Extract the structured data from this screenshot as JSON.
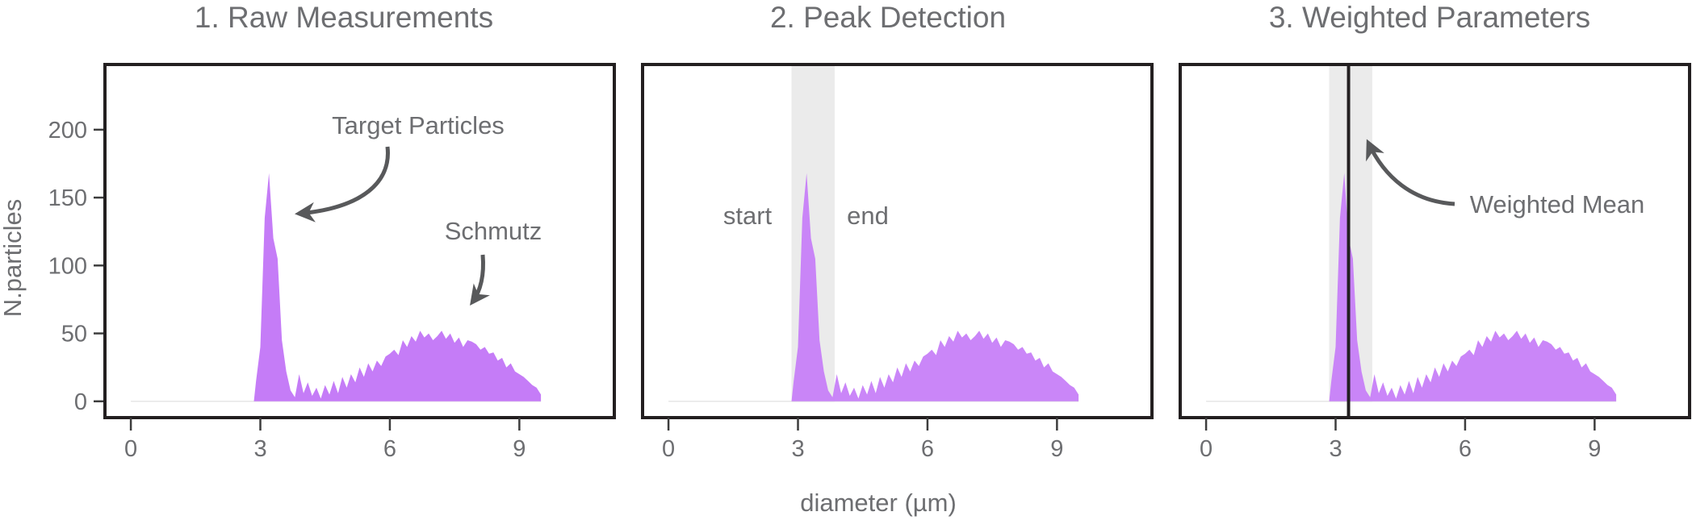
{
  "xlabel": "diameter (µm)",
  "ylabel": "N.particles",
  "colors": {
    "fill": "#c57cf7",
    "band": "#ebebeb",
    "frame": "#231f20",
    "text": "#6d6e71",
    "arrow": "#58595b"
  },
  "annotations": {
    "target_particles": "Target Particles",
    "schmutz": "Schmutz",
    "start": "start",
    "end": "end",
    "weighted_mean": "Weighted Mean"
  },
  "chart_data": [
    {
      "type": "area",
      "title": "1. Raw Measurements",
      "xlabel": "diameter (µm)",
      "ylabel": "N.particles",
      "xlim": [
        -0.6,
        11.2
      ],
      "ylim": [
        -12,
        248
      ],
      "xticks": [
        "0",
        "3",
        "6",
        "9"
      ],
      "yticks": [
        "0",
        "50",
        "100",
        "150",
        "200"
      ],
      "series": [
        {
          "x": [
            0,
            2.85,
            2.9,
            3.0,
            3.1,
            3.2,
            3.3,
            3.4,
            3.5,
            3.6,
            3.7,
            3.8,
            3.9,
            4.0,
            4.1,
            4.2,
            4.3,
            4.4,
            4.5,
            4.6,
            4.7,
            4.8,
            4.9,
            5.0,
            5.1,
            5.2,
            5.3,
            5.4,
            5.5,
            5.6,
            5.7,
            5.8,
            5.9,
            6.0,
            6.1,
            6.2,
            6.3,
            6.4,
            6.5,
            6.6,
            6.7,
            6.8,
            6.9,
            7.0,
            7.1,
            7.2,
            7.3,
            7.4,
            7.5,
            7.6,
            7.7,
            7.8,
            7.9,
            8.0,
            8.1,
            8.2,
            8.3,
            8.4,
            8.5,
            8.6,
            8.7,
            8.8,
            8.9,
            9.0,
            9.1,
            9.2,
            9.3,
            9.4,
            9.5
          ],
          "y": [
            0,
            0,
            15,
            40,
            135,
            168,
            120,
            105,
            45,
            22,
            8,
            3,
            20,
            6,
            14,
            4,
            10,
            2,
            12,
            5,
            15,
            6,
            18,
            10,
            20,
            14,
            25,
            18,
            28,
            22,
            30,
            26,
            33,
            35,
            38,
            34,
            45,
            40,
            48,
            44,
            52,
            47,
            50,
            45,
            48,
            52,
            46,
            50,
            43,
            47,
            40,
            45,
            44,
            42,
            38,
            40,
            35,
            36,
            30,
            32,
            25,
            28,
            22,
            20,
            18,
            15,
            12,
            10,
            5
          ]
        }
      ]
    },
    {
      "type": "area",
      "title": "2. Peak Detection",
      "xlabel": "diameter (µm)",
      "ylabel": "N.particles",
      "xlim": [
        -0.6,
        11.2
      ],
      "ylim": [
        -12,
        248
      ],
      "xticks": [
        "0",
        "3",
        "6",
        "9"
      ],
      "band": [
        2.85,
        3.85
      ],
      "series": [
        {
          "x": [
            0,
            2.85,
            2.9,
            3.0,
            3.1,
            3.2,
            3.3,
            3.4,
            3.5,
            3.6,
            3.7,
            3.8,
            3.9,
            4.0,
            4.1,
            4.2,
            4.3,
            4.4,
            4.5,
            4.6,
            4.7,
            4.8,
            4.9,
            5.0,
            5.1,
            5.2,
            5.3,
            5.4,
            5.5,
            5.6,
            5.7,
            5.8,
            5.9,
            6.0,
            6.1,
            6.2,
            6.3,
            6.4,
            6.5,
            6.6,
            6.7,
            6.8,
            6.9,
            7.0,
            7.1,
            7.2,
            7.3,
            7.4,
            7.5,
            7.6,
            7.7,
            7.8,
            7.9,
            8.0,
            8.1,
            8.2,
            8.3,
            8.4,
            8.5,
            8.6,
            8.7,
            8.8,
            8.9,
            9.0,
            9.1,
            9.2,
            9.3,
            9.4,
            9.5
          ],
          "y": [
            0,
            0,
            15,
            40,
            135,
            168,
            120,
            105,
            45,
            22,
            8,
            3,
            20,
            6,
            14,
            4,
            10,
            2,
            12,
            5,
            15,
            6,
            18,
            10,
            20,
            14,
            25,
            18,
            28,
            22,
            30,
            26,
            33,
            35,
            38,
            34,
            45,
            40,
            48,
            44,
            52,
            47,
            50,
            45,
            48,
            52,
            46,
            50,
            43,
            47,
            40,
            45,
            44,
            42,
            38,
            40,
            35,
            36,
            30,
            32,
            25,
            28,
            22,
            20,
            18,
            15,
            12,
            10,
            5
          ]
        }
      ]
    },
    {
      "type": "area",
      "title": "3.  Weighted Parameters",
      "xlabel": "diameter (µm)",
      "ylabel": "N.particles",
      "xlim": [
        -0.6,
        11.2
      ],
      "ylim": [
        -12,
        248
      ],
      "xticks": [
        "0",
        "3",
        "6",
        "9"
      ],
      "band": [
        2.85,
        3.85
      ],
      "vline": 3.3,
      "series": [
        {
          "x": [
            0,
            2.85,
            2.9,
            3.0,
            3.1,
            3.2,
            3.3,
            3.4,
            3.5,
            3.6,
            3.7,
            3.8,
            3.9,
            4.0,
            4.1,
            4.2,
            4.3,
            4.4,
            4.5,
            4.6,
            4.7,
            4.8,
            4.9,
            5.0,
            5.1,
            5.2,
            5.3,
            5.4,
            5.5,
            5.6,
            5.7,
            5.8,
            5.9,
            6.0,
            6.1,
            6.2,
            6.3,
            6.4,
            6.5,
            6.6,
            6.7,
            6.8,
            6.9,
            7.0,
            7.1,
            7.2,
            7.3,
            7.4,
            7.5,
            7.6,
            7.7,
            7.8,
            7.9,
            8.0,
            8.1,
            8.2,
            8.3,
            8.4,
            8.5,
            8.6,
            8.7,
            8.8,
            8.9,
            9.0,
            9.1,
            9.2,
            9.3,
            9.4,
            9.5
          ],
          "y": [
            0,
            0,
            15,
            40,
            135,
            168,
            120,
            105,
            45,
            22,
            8,
            3,
            20,
            6,
            14,
            4,
            10,
            2,
            12,
            5,
            15,
            6,
            18,
            10,
            20,
            14,
            25,
            18,
            28,
            22,
            30,
            26,
            33,
            35,
            38,
            34,
            45,
            40,
            48,
            44,
            52,
            47,
            50,
            45,
            48,
            52,
            46,
            50,
            43,
            47,
            40,
            45,
            44,
            42,
            38,
            40,
            35,
            36,
            30,
            32,
            25,
            28,
            22,
            20,
            18,
            15,
            12,
            10,
            5
          ]
        }
      ]
    }
  ]
}
